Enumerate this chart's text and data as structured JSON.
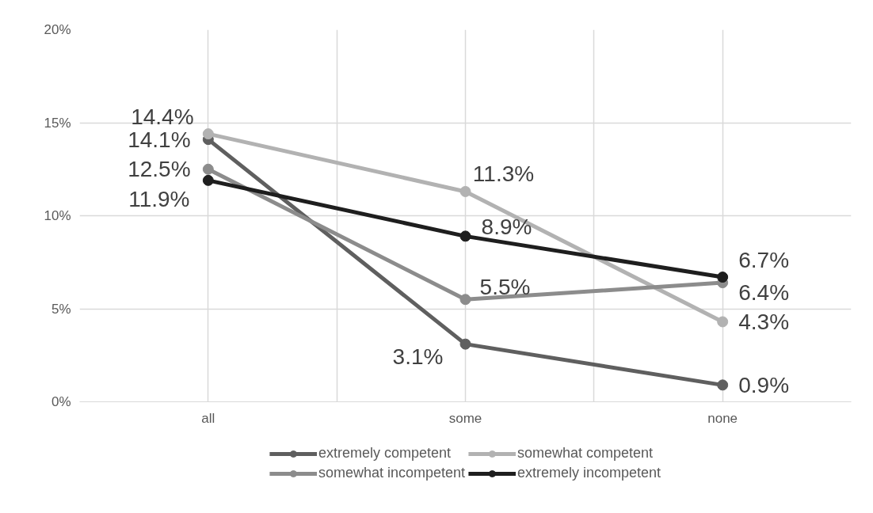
{
  "chart_data": {
    "type": "line",
    "categories": [
      "all",
      "some",
      "none"
    ],
    "series": [
      {
        "name": "extremely competent",
        "color": "#5f5f5f",
        "values": [
          14.1,
          3.1,
          0.9
        ],
        "value_labels": [
          "14.1%",
          "3.1%",
          "0.9%"
        ]
      },
      {
        "name": "somewhat competent",
        "color": "#b2b2b2",
        "values": [
          14.4,
          11.3,
          4.3
        ],
        "value_labels": [
          "14.4%",
          "11.3%",
          "4.3%"
        ]
      },
      {
        "name": "somewhat incompetent",
        "color": "#8c8c8c",
        "values": [
          12.5,
          5.5,
          6.4
        ],
        "value_labels": [
          "12.5%",
          "5.5%",
          "6.4%"
        ]
      },
      {
        "name": "extremely incompetent",
        "color": "#1e1e1e",
        "values": [
          11.9,
          8.9,
          6.7
        ],
        "value_labels": [
          "11.9%",
          "8.9%",
          "6.7%"
        ]
      }
    ],
    "ylim": [
      0,
      20
    ],
    "yticks": [
      {
        "value": 0,
        "label": "0%"
      },
      {
        "value": 5,
        "label": "5%"
      },
      {
        "value": 10,
        "label": "10%"
      },
      {
        "value": 15,
        "label": "15%"
      },
      {
        "value": 20,
        "label": "20%"
      }
    ],
    "grid": true,
    "legend": "bottom",
    "marker": "circle",
    "line_style": "solid"
  }
}
